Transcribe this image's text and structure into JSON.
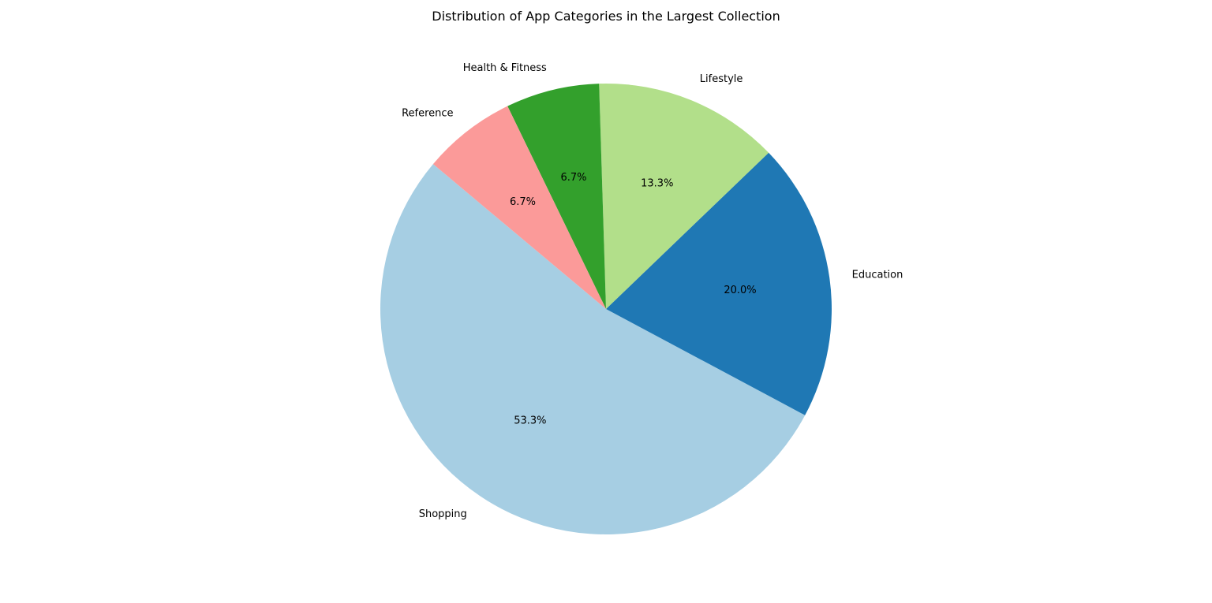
{
  "chart_data": {
    "type": "pie",
    "title": "Distribution of App Categories in the Largest Collection",
    "slices": [
      {
        "label": "Shopping",
        "value": 53.3,
        "pct_label": "53.3%",
        "color": "#a6cee3"
      },
      {
        "label": "Education",
        "value": 20.0,
        "pct_label": "20.0%",
        "color": "#1f78b4"
      },
      {
        "label": "Lifestyle",
        "value": 13.3,
        "pct_label": "13.3%",
        "color": "#b2df8a"
      },
      {
        "label": "Health & Fitness",
        "value": 6.7,
        "pct_label": "6.7%",
        "color": "#33a02c"
      },
      {
        "label": "Reference",
        "value": 6.7,
        "pct_label": "6.7%",
        "color": "#fb9a99"
      }
    ],
    "start_angle_deg": 140,
    "direction": "counterclockwise",
    "legend": "none"
  }
}
